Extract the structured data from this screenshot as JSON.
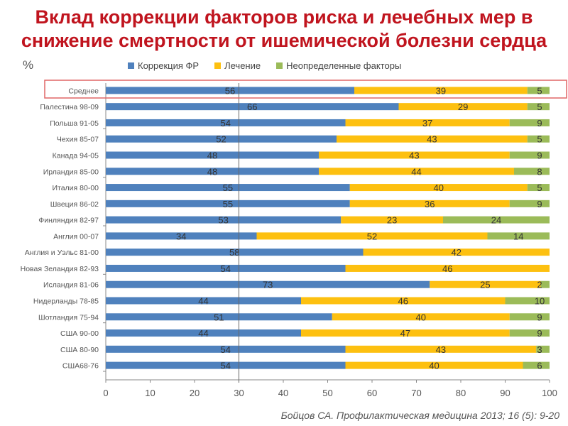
{
  "title_line1": "Вклад коррекции факторов риска и лечебных мер в",
  "title_line2": "снижение смертности от ишемической болезни сердца",
  "source": "Бойцов СА. Профилактическая медицина 2013; 16 (5): 9-20",
  "chart_data": {
    "type": "bar",
    "orientation": "horizontal",
    "stacked": true,
    "title": "Вклад коррекции факторов риска и лечебных мер в снижение смертности от ишемической болезни сердца",
    "xlabel": "",
    "ylabel": "%",
    "xlim": [
      0,
      100
    ],
    "xticks": [
      0,
      10,
      20,
      30,
      40,
      50,
      60,
      70,
      80,
      90,
      100
    ],
    "reference_line_x": 30,
    "highlighted_category": "Среднее",
    "legend_position": "top",
    "categories": [
      "Среднее",
      "Палестина 98-09",
      "Польша 91-05",
      "Чехия 85-07",
      "Канада 94-05",
      "Ирландия 85-00",
      "Италия 80-00",
      "Швеция 86-02",
      "Финляндия 82-97",
      "Англия 00-07",
      "Англия и Уэльс 81-00",
      "Новая Зеландия 82-93",
      "Исландия 81-06",
      "Нидерланды 78-85",
      "Шотландия 75-94",
      "США 90-00",
      "США 80-90",
      "США68-76"
    ],
    "series": [
      {
        "name": "Коррекция ФР",
        "color": "#4f81bd",
        "values": [
          56,
          66,
          54,
          52,
          48,
          48,
          55,
          55,
          53,
          34,
          58,
          54,
          73,
          44,
          51,
          44,
          54,
          54
        ]
      },
      {
        "name": "Лечение",
        "color": "#fdc010",
        "values": [
          39,
          29,
          37,
          43,
          43,
          44,
          40,
          36,
          23,
          52,
          42,
          46,
          25,
          46,
          40,
          47,
          43,
          40
        ]
      },
      {
        "name": "Неопределенные факторы",
        "color": "#9bbb59",
        "values": [
          5,
          5,
          9,
          5,
          9,
          8,
          5,
          9,
          24,
          14,
          0,
          0,
          2,
          10,
          9,
          9,
          3,
          6
        ]
      }
    ]
  },
  "colors": {
    "title": "#c0141e",
    "highlight_box": "#e06666"
  }
}
